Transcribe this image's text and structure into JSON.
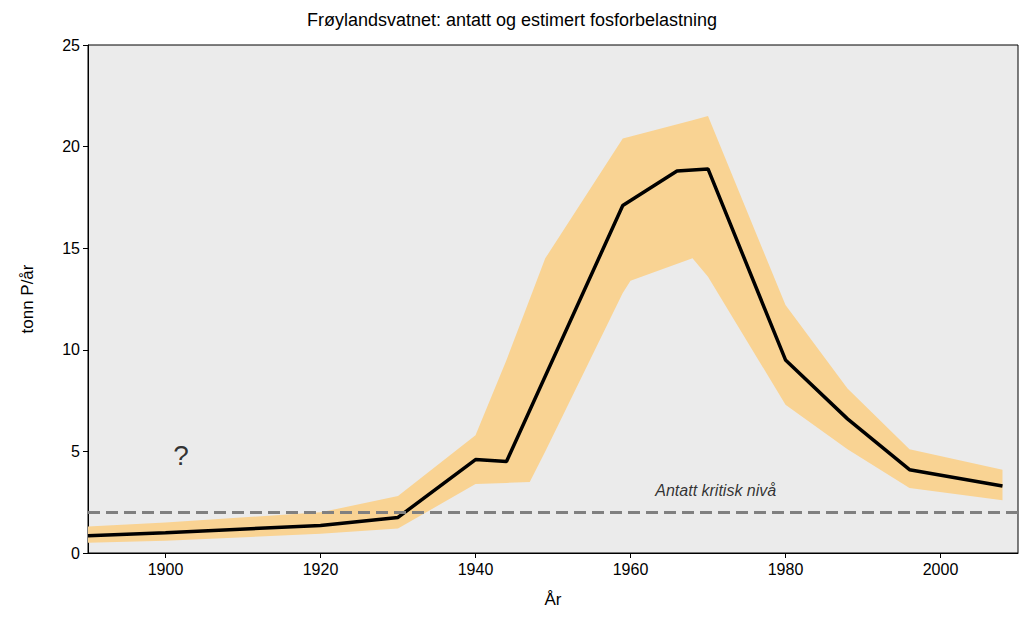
{
  "chart_data": {
    "type": "line",
    "title": "Frøylandsvatnet: antatt og estimert fosforbelastning",
    "x_label": "År",
    "y_label": "tonn P/år",
    "x": [
      1890,
      1900,
      1920,
      1930,
      1940,
      1944,
      1959,
      1966,
      1970,
      1980,
      1988,
      1996,
      2008
    ],
    "values": [
      0.85,
      1.0,
      1.35,
      1.75,
      4.6,
      4.5,
      17.1,
      18.8,
      18.9,
      9.5,
      6.6,
      4.1,
      3.3
    ],
    "color": "#000000",
    "band": {
      "x": [
        1890,
        1900,
        1920,
        1930,
        1940,
        1944,
        1947,
        1949,
        1959,
        1960,
        1968,
        1970,
        1980,
        1988,
        1996,
        2008
      ],
      "lower": [
        0.5,
        0.6,
        0.95,
        1.2,
        3.4,
        3.45,
        3.5,
        5.0,
        12.8,
        13.4,
        14.5,
        13.6,
        7.3,
        5.1,
        3.2,
        2.6
      ],
      "upper": [
        1.3,
        1.5,
        2.0,
        2.8,
        5.8,
        9.5,
        12.5,
        14.5,
        20.4,
        20.5,
        21.3,
        21.5,
        12.2,
        8.1,
        5.1,
        4.1
      ],
      "color": "#f9d393"
    },
    "reference_line": {
      "y": 2,
      "color": "#808080",
      "line_style": "dashed"
    },
    "annotations": [
      {
        "text": "?",
        "x": 1902,
        "y": 4.8
      },
      {
        "text": "Antatt kritisk nivå",
        "x": 1971,
        "y": 3.1
      }
    ],
    "xlim": [
      1890,
      2010
    ],
    "xticks": [
      1900,
      1920,
      1940,
      1960,
      1980,
      2000
    ],
    "ylim": [
      0,
      25
    ],
    "yticks": [
      0,
      5,
      10,
      15,
      20,
      25
    ],
    "grid": false
  }
}
